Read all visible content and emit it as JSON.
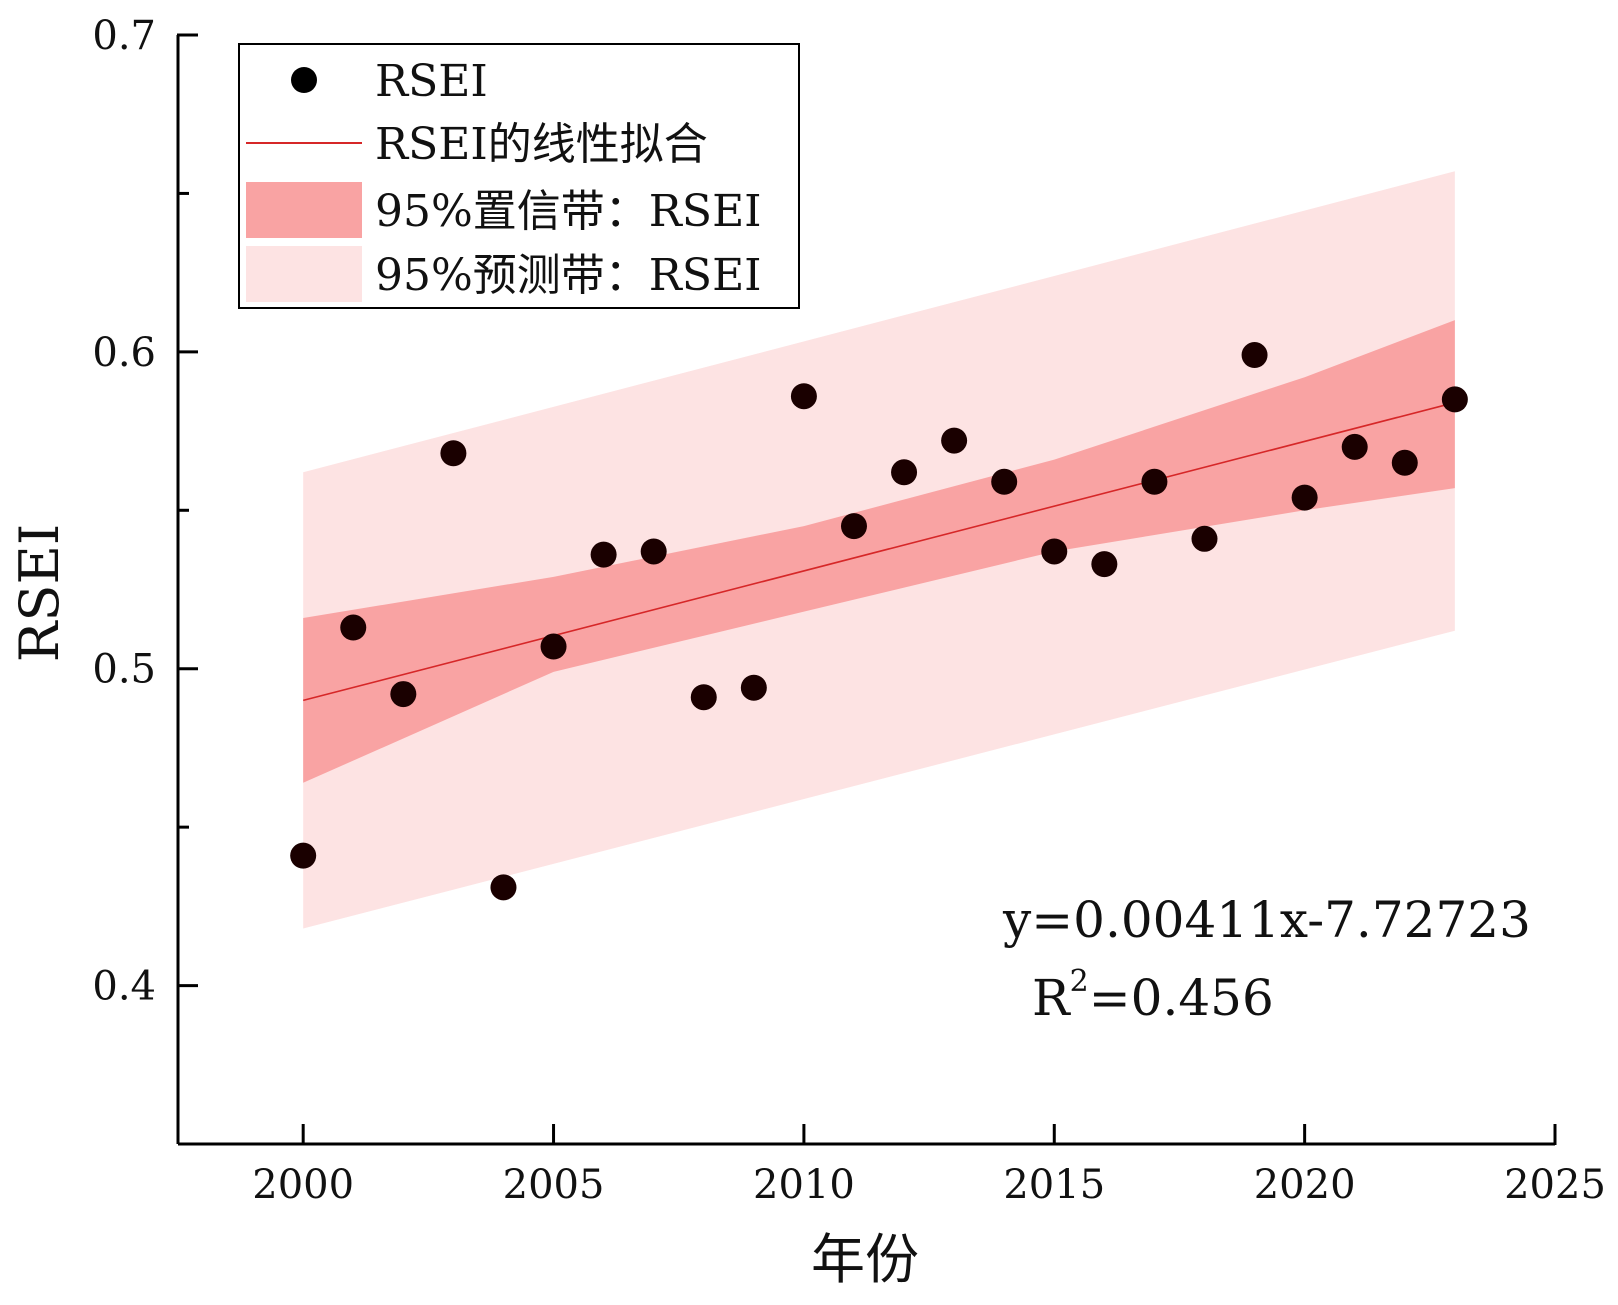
{
  "chart_data": {
    "type": "scatter",
    "xlabel": "年份",
    "ylabel": "RSEI",
    "xlim": [
      1997.5,
      2025
    ],
    "ylim": [
      0.35,
      0.7
    ],
    "x_ticks": [
      2000,
      2005,
      2010,
      2015,
      2020,
      2025
    ],
    "x_tick_labels": [
      "2000",
      "2005",
      "2010",
      "2015",
      "2020",
      "2025"
    ],
    "y_ticks": [
      0.4,
      0.5,
      0.6,
      0.7
    ],
    "y_tick_labels": [
      "0.4",
      "0.5",
      "0.6",
      "0.7"
    ],
    "y_minor_ticks": [
      0.45,
      0.55,
      0.65
    ],
    "grid": false,
    "legend_position": "top-left",
    "legend": {
      "points": "RSEI",
      "fit": "RSEI的线性拟合",
      "confidence_band": "95%置信带：RSEI",
      "prediction_band": "95%预测带：RSEI"
    },
    "equation": "y=0.00411x-7.72723",
    "r_squared_prefix": "R",
    "r_squared_sup": "2",
    "r_squared_value": "=0.456",
    "series": [
      {
        "name": "RSEI",
        "x": [
          2000,
          2001,
          2002,
          2003,
          2004,
          2005,
          2006,
          2007,
          2008,
          2009,
          2010,
          2011,
          2012,
          2013,
          2014,
          2015,
          2016,
          2017,
          2018,
          2019,
          2020,
          2021,
          2022,
          2023
        ],
        "y": [
          0.441,
          0.513,
          0.492,
          0.568,
          0.431,
          0.507,
          0.536,
          0.537,
          0.491,
          0.494,
          0.586,
          0.545,
          0.562,
          0.572,
          0.559,
          0.537,
          0.533,
          0.559,
          0.541,
          0.599,
          0.554,
          0.57,
          0.565,
          0.585
        ]
      }
    ],
    "fit_line": {
      "x": [
        2000,
        2023
      ],
      "y": [
        0.49,
        0.584
      ]
    },
    "confidence_band": {
      "x": [
        2000,
        2005,
        2010,
        2015,
        2020,
        2023
      ],
      "upper": [
        0.516,
        0.529,
        0.545,
        0.566,
        0.592,
        0.61
      ],
      "lower": [
        0.464,
        0.499,
        0.518,
        0.537,
        0.55,
        0.557
      ]
    },
    "prediction_band": {
      "x": [
        2000,
        2023
      ],
      "upper": [
        0.562,
        0.657
      ],
      "lower": [
        0.418,
        0.512
      ]
    },
    "colors": {
      "points": "#1a0000",
      "fit_line": "#d62728",
      "confidence_band": "#f9a3a3",
      "prediction_band": "#fde3e3",
      "axes": "#000000"
    }
  }
}
